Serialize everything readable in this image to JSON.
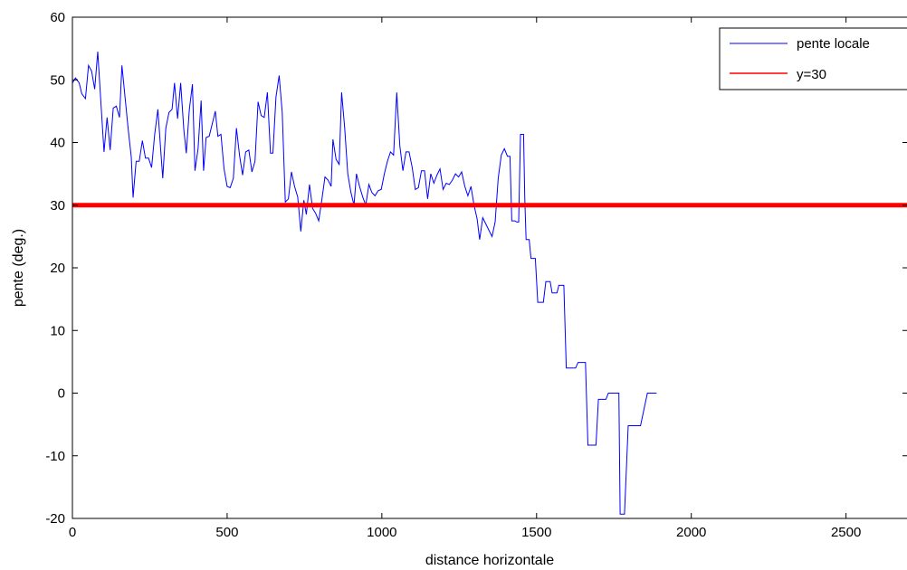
{
  "chart_data": {
    "type": "line",
    "title": "",
    "xlabel": "distance horizontale",
    "ylabel": "pente (deg.)",
    "xlim": [
      0,
      2700
    ],
    "ylim": [
      -20,
      60
    ],
    "xticks": [
      0,
      500,
      1000,
      1500,
      2000,
      2500
    ],
    "yticks": [
      -20,
      -10,
      0,
      10,
      20,
      30,
      40,
      50,
      60
    ],
    "grid": false,
    "legend_position": "top-right",
    "series": [
      {
        "name": "pente locale",
        "color": "#0000ff",
        "points": [
          [
            0,
            49.5
          ],
          [
            10,
            50.3
          ],
          [
            22,
            49.5
          ],
          [
            30,
            47.8
          ],
          [
            42,
            47.0
          ],
          [
            52,
            52.3
          ],
          [
            62,
            51.4
          ],
          [
            72,
            48.5
          ],
          [
            82,
            54.5
          ],
          [
            92,
            46.3
          ],
          [
            102,
            38.5
          ],
          [
            112,
            44.0
          ],
          [
            122,
            38.8
          ],
          [
            132,
            45.5
          ],
          [
            142,
            45.8
          ],
          [
            152,
            44.0
          ],
          [
            160,
            52.3
          ],
          [
            170,
            47.3
          ],
          [
            180,
            42.3
          ],
          [
            190,
            37.7
          ],
          [
            196,
            31.2
          ],
          [
            206,
            37.0
          ],
          [
            216,
            37.0
          ],
          [
            226,
            40.3
          ],
          [
            236,
            37.5
          ],
          [
            246,
            37.5
          ],
          [
            256,
            36.0
          ],
          [
            266,
            41.3
          ],
          [
            276,
            45.3
          ],
          [
            286,
            38.3
          ],
          [
            292,
            34.3
          ],
          [
            302,
            42.3
          ],
          [
            312,
            44.8
          ],
          [
            322,
            45.3
          ],
          [
            330,
            49.5
          ],
          [
            340,
            43.8
          ],
          [
            350,
            49.5
          ],
          [
            360,
            42.0
          ],
          [
            368,
            38.3
          ],
          [
            378,
            45.3
          ],
          [
            388,
            49.3
          ],
          [
            396,
            35.5
          ],
          [
            406,
            39.0
          ],
          [
            416,
            46.7
          ],
          [
            424,
            35.5
          ],
          [
            432,
            40.8
          ],
          [
            442,
            41.0
          ],
          [
            452,
            43.0
          ],
          [
            462,
            45.0
          ],
          [
            470,
            41.0
          ],
          [
            480,
            41.3
          ],
          [
            490,
            35.8
          ],
          [
            500,
            33.0
          ],
          [
            510,
            32.8
          ],
          [
            520,
            34.3
          ],
          [
            530,
            42.3
          ],
          [
            540,
            38.0
          ],
          [
            550,
            34.8
          ],
          [
            560,
            38.5
          ],
          [
            570,
            38.8
          ],
          [
            580,
            35.3
          ],
          [
            590,
            37.0
          ],
          [
            600,
            46.5
          ],
          [
            610,
            44.3
          ],
          [
            620,
            44.0
          ],
          [
            630,
            48.0
          ],
          [
            640,
            38.3
          ],
          [
            648,
            38.3
          ],
          [
            658,
            47.3
          ],
          [
            668,
            50.7
          ],
          [
            678,
            44.8
          ],
          [
            688,
            30.5
          ],
          [
            698,
            31.0
          ],
          [
            708,
            35.3
          ],
          [
            718,
            33.0
          ],
          [
            728,
            31.3
          ],
          [
            738,
            25.8
          ],
          [
            748,
            30.8
          ],
          [
            756,
            28.5
          ],
          [
            766,
            33.3
          ],
          [
            776,
            29.5
          ],
          [
            786,
            28.7
          ],
          [
            796,
            27.5
          ],
          [
            806,
            30.8
          ],
          [
            816,
            34.5
          ],
          [
            826,
            34.0
          ],
          [
            836,
            33.0
          ],
          [
            842,
            40.5
          ],
          [
            852,
            37.3
          ],
          [
            862,
            36.5
          ],
          [
            870,
            48.0
          ],
          [
            880,
            42.3
          ],
          [
            890,
            35.0
          ],
          [
            900,
            32.0
          ],
          [
            910,
            30.0
          ],
          [
            918,
            35.0
          ],
          [
            928,
            33.0
          ],
          [
            938,
            31.3
          ],
          [
            948,
            30.0
          ],
          [
            958,
            33.3
          ],
          [
            968,
            32.0
          ],
          [
            978,
            31.5
          ],
          [
            988,
            32.3
          ],
          [
            998,
            32.5
          ],
          [
            1008,
            35.0
          ],
          [
            1018,
            37.0
          ],
          [
            1028,
            38.5
          ],
          [
            1038,
            38.0
          ],
          [
            1048,
            48.0
          ],
          [
            1058,
            39.5
          ],
          [
            1068,
            35.5
          ],
          [
            1078,
            38.5
          ],
          [
            1088,
            38.5
          ],
          [
            1098,
            36.0
          ],
          [
            1108,
            32.5
          ],
          [
            1118,
            32.8
          ],
          [
            1128,
            35.5
          ],
          [
            1138,
            35.5
          ],
          [
            1148,
            31.0
          ],
          [
            1158,
            35.0
          ],
          [
            1168,
            33.5
          ],
          [
            1178,
            34.8
          ],
          [
            1188,
            35.8
          ],
          [
            1198,
            32.5
          ],
          [
            1208,
            33.5
          ],
          [
            1218,
            33.3
          ],
          [
            1228,
            34.0
          ],
          [
            1238,
            35.0
          ],
          [
            1248,
            34.5
          ],
          [
            1258,
            35.3
          ],
          [
            1268,
            33.0
          ],
          [
            1278,
            31.5
          ],
          [
            1288,
            33.0
          ],
          [
            1298,
            30.0
          ],
          [
            1308,
            27.8
          ],
          [
            1316,
            24.5
          ],
          [
            1326,
            28.0
          ],
          [
            1336,
            27.0
          ],
          [
            1346,
            26.0
          ],
          [
            1356,
            25.0
          ],
          [
            1366,
            27.3
          ],
          [
            1376,
            34.3
          ],
          [
            1386,
            38.0
          ],
          [
            1396,
            39.0
          ],
          [
            1406,
            37.8
          ],
          [
            1414,
            37.8
          ],
          [
            1420,
            27.5
          ],
          [
            1430,
            27.5
          ],
          [
            1436,
            27.3
          ],
          [
            1442,
            27.3
          ],
          [
            1448,
            41.3
          ],
          [
            1458,
            41.3
          ],
          [
            1462,
            30.8
          ],
          [
            1466,
            24.5
          ],
          [
            1476,
            24.5
          ],
          [
            1482,
            21.5
          ],
          [
            1496,
            21.5
          ],
          [
            1504,
            14.5
          ],
          [
            1522,
            14.5
          ],
          [
            1530,
            17.8
          ],
          [
            1544,
            17.8
          ],
          [
            1550,
            16.0
          ],
          [
            1566,
            16.0
          ],
          [
            1572,
            17.2
          ],
          [
            1588,
            17.2
          ],
          [
            1596,
            4.0
          ],
          [
            1626,
            4.0
          ],
          [
            1634,
            4.9
          ],
          [
            1658,
            4.9
          ],
          [
            1666,
            -8.3
          ],
          [
            1692,
            -8.3
          ],
          [
            1700,
            -1.0
          ],
          [
            1724,
            -1.0
          ],
          [
            1732,
            0.0
          ],
          [
            1766,
            0.0
          ],
          [
            1770,
            -19.3
          ],
          [
            1784,
            -19.3
          ],
          [
            1796,
            -5.2
          ],
          [
            1836,
            -5.2
          ],
          [
            1858,
            0.0
          ],
          [
            1888,
            0.0
          ]
        ]
      },
      {
        "name": "y=30",
        "color": "#ff0000",
        "points": [
          [
            0,
            30
          ],
          [
            2700,
            30
          ]
        ]
      }
    ]
  }
}
